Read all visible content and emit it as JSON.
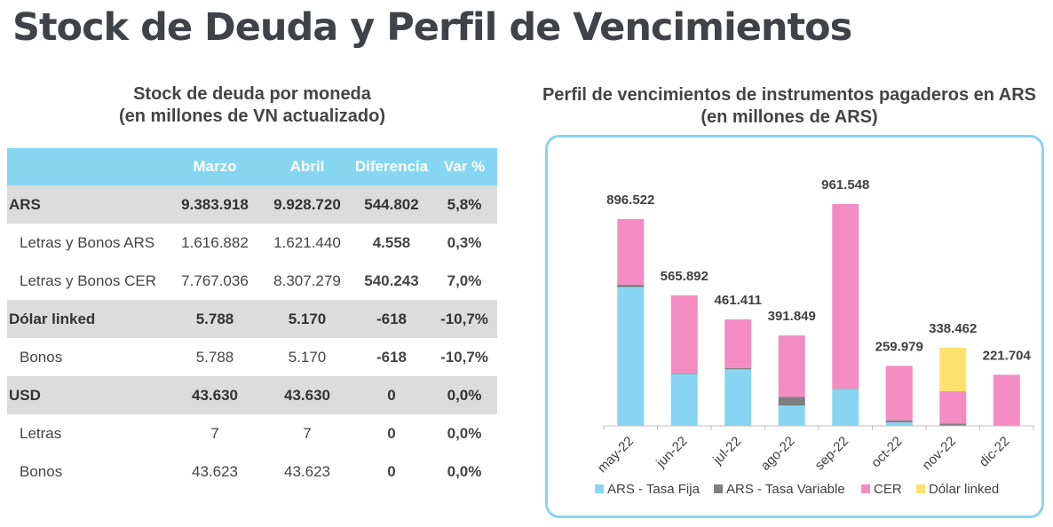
{
  "page_title": "Stock de Deuda y Perfil de Vencimientos",
  "table": {
    "title_line1": "Stock de deuda por moneda",
    "title_line2": "(en millones de VN actualizado)",
    "headers": [
      "",
      "Marzo",
      "Abril",
      "Diferencia",
      "Var %"
    ],
    "rows": [
      {
        "type": "group",
        "label": "ARS",
        "marzo": "9.383.918",
        "abril": "9.928.720",
        "diferencia": "544.802",
        "var": "5,8%"
      },
      {
        "type": "sub",
        "label": "Letras y Bonos ARS",
        "marzo": "1.616.882",
        "abril": "1.621.440",
        "diferencia": "4.558",
        "var": "0,3%"
      },
      {
        "type": "sub",
        "label": "Letras y Bonos CER",
        "marzo": "7.767.036",
        "abril": "8.307.279",
        "diferencia": "540.243",
        "var": "7,0%"
      },
      {
        "type": "group",
        "label": "Dólar linked",
        "marzo": "5.788",
        "abril": "5.170",
        "diferencia": "-618",
        "var": "-10,7%"
      },
      {
        "type": "sub",
        "label": "Bonos",
        "marzo": "5.788",
        "abril": "5.170",
        "diferencia": "-618",
        "var": "-10,7%"
      },
      {
        "type": "group",
        "label": "USD",
        "marzo": "43.630",
        "abril": "43.630",
        "diferencia": "0",
        "var": "0,0%"
      },
      {
        "type": "sub",
        "label": "Letras",
        "marzo": "7",
        "abril": "7",
        "diferencia": "0",
        "var": "0,0%"
      },
      {
        "type": "sub",
        "label": "Bonos",
        "marzo": "43.623",
        "abril": "43.623",
        "diferencia": "0",
        "var": "0,0%"
      }
    ],
    "colors": {
      "header_bg": "#86d6f2",
      "group_bg": "#dcdcdc"
    }
  },
  "chart_data": {
    "type": "bar",
    "stacked": true,
    "title_line1": "Perfil de vencimientos de instrumentos pagaderos en ARS",
    "title_line2": "(en millones de ARS)",
    "categories": [
      "may-22",
      "jun-22",
      "jul-22",
      "ago-22",
      "sep-22",
      "oct-22",
      "nov-22",
      "dic-22"
    ],
    "totals": [
      896.522,
      565.892,
      461.411,
      391.849,
      961.548,
      259.979,
      338.462,
      221.704
    ],
    "total_labels": [
      "896.522",
      "565.892",
      "461.411",
      "391.849",
      "961.548",
      "259.979",
      "338.462",
      "221.704"
    ],
    "series": [
      {
        "name": "ARS - Tasa Fija",
        "color": "#87d5f2",
        "values": [
          602,
          225,
          245,
          88,
          160,
          15,
          0,
          0
        ]
      },
      {
        "name": "ARS - Tasa Variable",
        "color": "#7f7f7f",
        "values": [
          10,
          3,
          6,
          38,
          2,
          8,
          10,
          0
        ]
      },
      {
        "name": "CER",
        "color": "#f28cc2",
        "values": [
          284.522,
          337.892,
          210.411,
          265.849,
          799.548,
          236.979,
          140,
          221.704
        ]
      },
      {
        "name": "Dólar linked",
        "color": "#fce36f",
        "values": [
          0,
          0,
          0,
          0,
          0,
          0,
          188.462,
          0
        ]
      }
    ],
    "ylim": [
      0,
      1000
    ],
    "legend_position": "bottom",
    "grid": false
  }
}
